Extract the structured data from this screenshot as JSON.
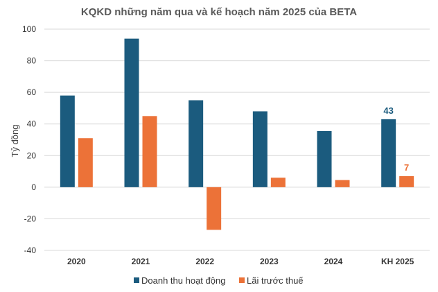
{
  "chart_data": {
    "type": "bar",
    "title": "KQKD những năm qua và kế hoạch năm 2025 của BETA",
    "ylabel": "Tỷ đồng",
    "xlabel": "",
    "ylim": [
      -40,
      100
    ],
    "yticks": [
      100,
      80,
      60,
      40,
      20,
      0,
      -20,
      -40
    ],
    "grid": true,
    "legend_position": "bottom",
    "categories": [
      "2020",
      "2021",
      "2022",
      "2023",
      "2024",
      "KH 2025"
    ],
    "series": [
      {
        "name": "Doanh thu hoạt động",
        "color": "#1b5b7e",
        "values": [
          58,
          94,
          55,
          48,
          35.5,
          43
        ]
      },
      {
        "name": "Lãi trước thuế",
        "color": "#ec7238",
        "values": [
          31,
          45,
          -27,
          6,
          4.5,
          7
        ]
      }
    ],
    "data_labels": [
      {
        "series": 0,
        "category": 5,
        "text": "43"
      },
      {
        "series": 1,
        "category": 5,
        "text": "7"
      }
    ]
  }
}
